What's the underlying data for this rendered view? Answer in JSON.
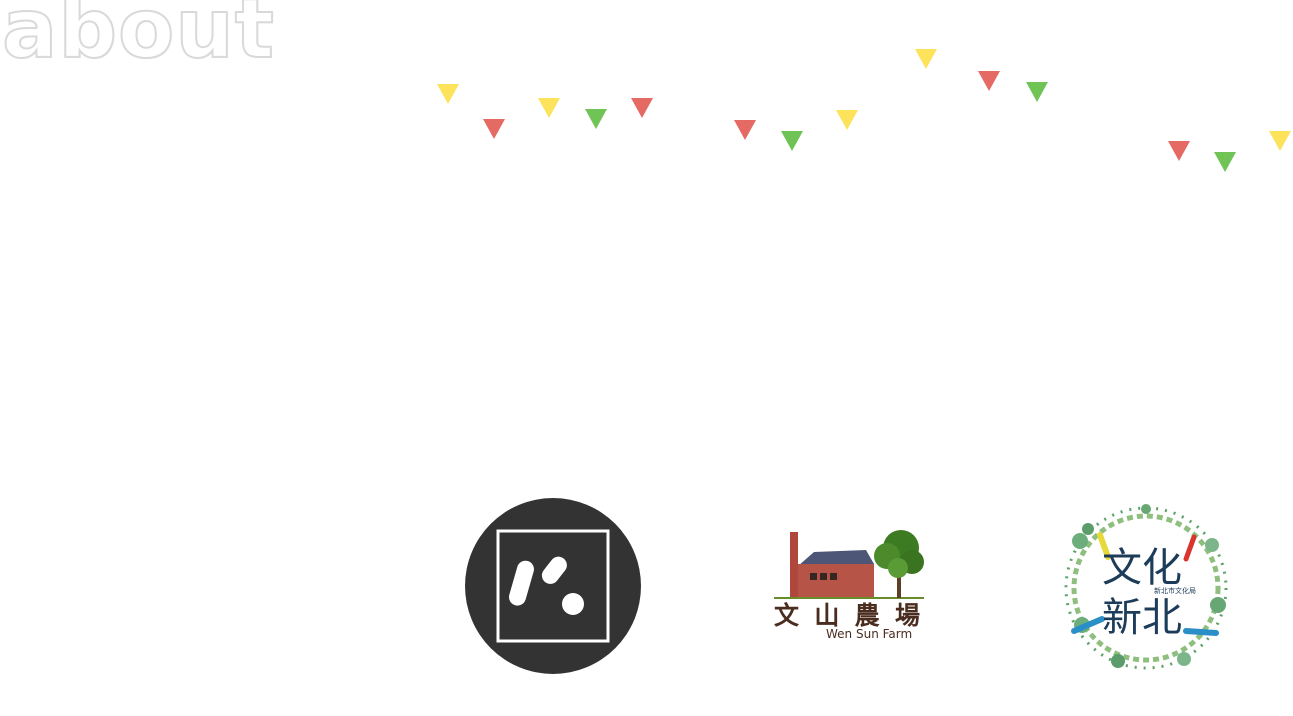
{
  "header": {
    "title": "about"
  },
  "bunting": {
    "colors": {
      "yellow": "#fde35b",
      "red": "#e66a64",
      "green": "#70c455"
    },
    "flags": [
      "yellow",
      "red",
      "yellow",
      "green",
      "red",
      "red",
      "green",
      "yellow",
      "yellow",
      "red",
      "green",
      "red",
      "green",
      "yellow"
    ]
  },
  "logos": {
    "circle_logo": {
      "icon": "circle-square-logo-icon"
    },
    "farm": {
      "name_zh": "文山農場",
      "name_en": "Wen Sun Farm"
    },
    "culture": {
      "line1": "文化",
      "line2": "新北",
      "subtitle": "新北市文化局"
    }
  }
}
